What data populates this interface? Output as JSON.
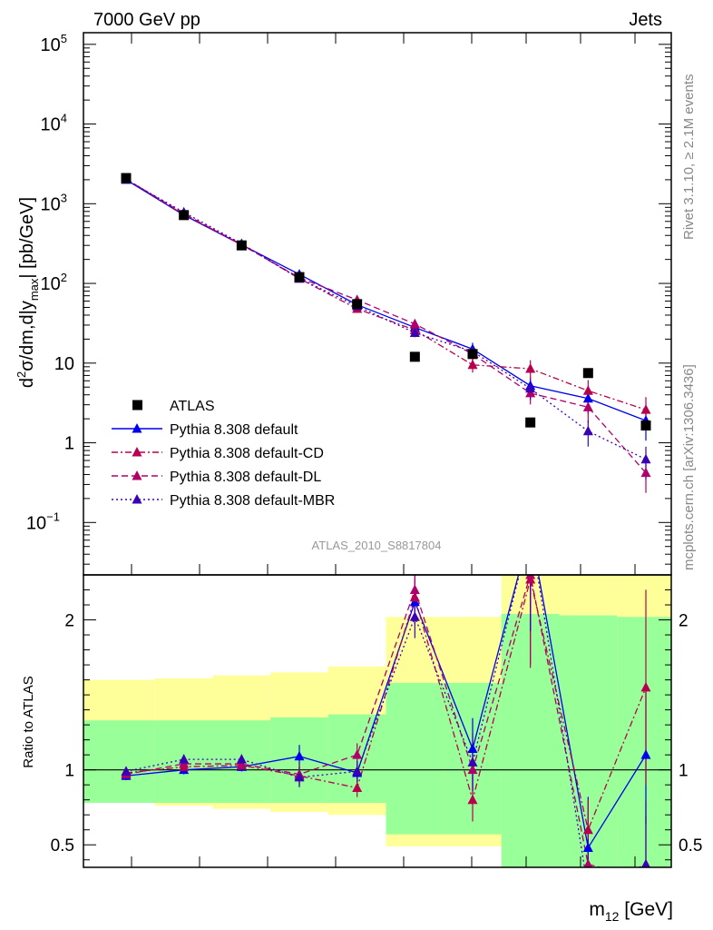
{
  "header": {
    "left": "7000 GeV pp",
    "right": "Jets",
    "side_top": "Rivet 3.1.10, ≥ 2.1M events",
    "side_bottom": "mcplots.cern.ch [arXiv:1306.3436]"
  },
  "chart_data": [
    {
      "panel": "main",
      "type": "line",
      "ylabel": "d²σ/dm,d|y_max| [pb/GeV]",
      "ylabel_parts": {
        "d": "d",
        "sup": "2",
        "mid": "σ/dm,d|y",
        "sub": "max",
        "tail": "| [pb/GeV]"
      },
      "yscale": "log",
      "ylim": [
        0.022,
        140000
      ],
      "yticks": [
        {
          "value": 100000,
          "label": "10",
          "exp": "5"
        },
        {
          "value": 10000,
          "label": "10",
          "exp": "4"
        },
        {
          "value": 1000,
          "label": "10",
          "exp": "3"
        },
        {
          "value": 100,
          "label": "10",
          "exp": "2"
        },
        {
          "value": 10,
          "label": "10",
          "exp": ""
        },
        {
          "value": 1,
          "label": "1",
          "exp": ""
        },
        {
          "value": 0.1,
          "label": "10",
          "exp": "−1"
        }
      ],
      "x": [
        1,
        2,
        3,
        4,
        5,
        6,
        7,
        8,
        9,
        10
      ],
      "annotation": "ATLAS_2010_S8817804",
      "legend_placement": "lower-left",
      "series": [
        {
          "name": "ATLAS",
          "marker": "square",
          "color": "#000000",
          "values": [
            2100,
            720,
            300,
            120,
            55,
            12,
            13,
            1.8,
            7.5,
            1.65
          ]
        },
        {
          "name": "Pythia 8.308 default",
          "marker": "triangle",
          "color": "#0000ee",
          "dash": "solid",
          "values": [
            2000,
            720,
            305,
            130,
            54,
            28,
            15,
            5.2,
            3.6,
            1.9
          ]
        },
        {
          "name": "Pythia 8.308 default-CD",
          "marker": "triangle",
          "color": "#b8004f",
          "dash": "dashdot",
          "values": [
            2050,
            730,
            310,
            115,
            48,
            26,
            9.5,
            8.5,
            4.5,
            2.6
          ]
        },
        {
          "name": "Pythia 8.308 default-DL",
          "marker": "triangle",
          "color": "#b0006a",
          "dash": "dashed",
          "values": [
            2030,
            750,
            305,
            118,
            62,
            31,
            13,
            4.2,
            2.8,
            0.42
          ]
        },
        {
          "name": "Pythia 8.308 default-MBR",
          "marker": "triangle",
          "color": "#3a00b8",
          "dash": "dotted",
          "values": [
            2000,
            780,
            315,
            115,
            52,
            24,
            14,
            4.8,
            1.4,
            0.62
          ]
        }
      ]
    },
    {
      "panel": "ratio",
      "type": "line",
      "ylabel": "Ratio to ATLAS",
      "xlabel": "m₁₂ [GeV]",
      "xlabel_parts": {
        "main": "m",
        "sub": "12",
        "tail": " [GeV]"
      },
      "ylim": [
        0.35,
        2.3
      ],
      "yticks": [
        {
          "value": 0.5,
          "label": "0.5"
        },
        {
          "value": 1,
          "label": "1"
        },
        {
          "value": 2,
          "label": "2"
        }
      ],
      "bands": {
        "yellow_color": "#ffff99",
        "green_color": "#99ff99",
        "edges": [
          0.2,
          1.5,
          2.5,
          3.5,
          4.5,
          5.5,
          6.5,
          7.5,
          8.5,
          9.5,
          10.5
        ],
        "yellow": [
          [
            0.78,
            1.6
          ],
          [
            0.76,
            1.61
          ],
          [
            0.74,
            1.63
          ],
          [
            0.72,
            1.65
          ],
          [
            0.7,
            1.69
          ],
          [
            0.49,
            2.02
          ],
          [
            0.49,
            2.02
          ],
          [
            0.3,
            2.3
          ],
          [
            0.3,
            2.3
          ],
          [
            0.3,
            2.3
          ]
        ],
        "green": [
          [
            0.78,
            1.33
          ],
          [
            0.78,
            1.33
          ],
          [
            0.78,
            1.33
          ],
          [
            0.78,
            1.35
          ],
          [
            0.78,
            1.37
          ],
          [
            0.57,
            1.58
          ],
          [
            0.57,
            1.58
          ],
          [
            0.3,
            2.04
          ],
          [
            0.3,
            2.03
          ],
          [
            0.3,
            2.02
          ]
        ]
      },
      "series": [
        {
          "name": "Pythia 8.308 default",
          "color": "#0000ee",
          "dash": "solid",
          "values": [
            0.96,
            1.0,
            1.02,
            1.09,
            0.98,
            2.12,
            1.14,
            2.6,
            0.48,
            1.1
          ]
        },
        {
          "name": "Pythia 8.308 default-CD",
          "color": "#b8004f",
          "dash": "dashdot",
          "values": [
            0.98,
            1.02,
            1.03,
            0.96,
            0.88,
            2.15,
            0.8,
            2.27,
            0.6,
            1.55
          ]
        },
        {
          "name": "Pythia 8.308 default-DL",
          "color": "#b0006a",
          "dash": "dashed",
          "values": [
            0.97,
            1.04,
            1.04,
            0.97,
            1.1,
            2.2,
            1.0,
            2.3,
            0.37,
            0.27
          ]
        },
        {
          "name": "Pythia 8.308 default-MBR",
          "color": "#3a00b8",
          "dash": "dotted",
          "values": [
            0.99,
            1.07,
            1.07,
            0.95,
            0.99,
            2.02,
            1.05,
            2.6,
            0.2,
            0.37
          ]
        }
      ]
    }
  ]
}
